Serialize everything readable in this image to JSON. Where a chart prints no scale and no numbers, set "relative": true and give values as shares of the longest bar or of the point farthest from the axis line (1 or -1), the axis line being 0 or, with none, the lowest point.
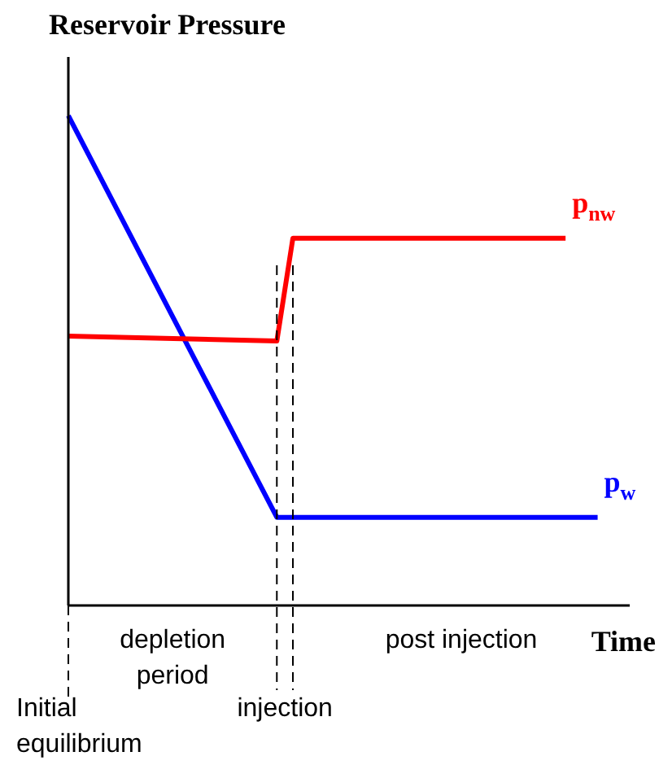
{
  "chart_data": {
    "type": "line",
    "relative": true,
    "ylabel": "Reservoir Pressure",
    "xlabel": "Time",
    "tick_labels": false,
    "legend": false,
    "marker": "none",
    "line_style": "solid",
    "categories": [
      null,
      null,
      null,
      null,
      null,
      null,
      null,
      null,
      null,
      null,
      null,
      null,
      null,
      null,
      null,
      null,
      null,
      null,
      null,
      null,
      null,
      null,
      null,
      null,
      null,
      null,
      null,
      null,
      null,
      null,
      null,
      null,
      null,
      null,
      null,
      null
    ],
    "series": [
      {
        "name": "p$_{nw}$",
        "color": "#ff0000",
        "values": [
          0.55,
          null,
          null,
          null,
          null,
          null,
          null,
          null,
          null,
          null,
          null,
          null,
          null,
          0.54,
          0.75,
          null,
          null,
          null,
          null,
          null,
          null,
          null,
          null,
          null,
          null,
          null,
          null,
          null,
          null,
          null,
          null,
          0.75,
          null,
          null,
          null,
          null
        ]
      },
      {
        "name": "p$_{w}$",
        "color": "#0000ff",
        "values": [
          1,
          null,
          null,
          null,
          null,
          null,
          null,
          null,
          null,
          null,
          null,
          null,
          null,
          0.18,
          null,
          null,
          null,
          null,
          null,
          null,
          null,
          null,
          null,
          null,
          null,
          null,
          null,
          null,
          null,
          null,
          null,
          null,
          null,
          0.18,
          null,
          null
        ]
      }
    ],
    "annotations": [
      "Initial equilibrium",
      "depletion period",
      "injection",
      "post injection"
    ]
  }
}
